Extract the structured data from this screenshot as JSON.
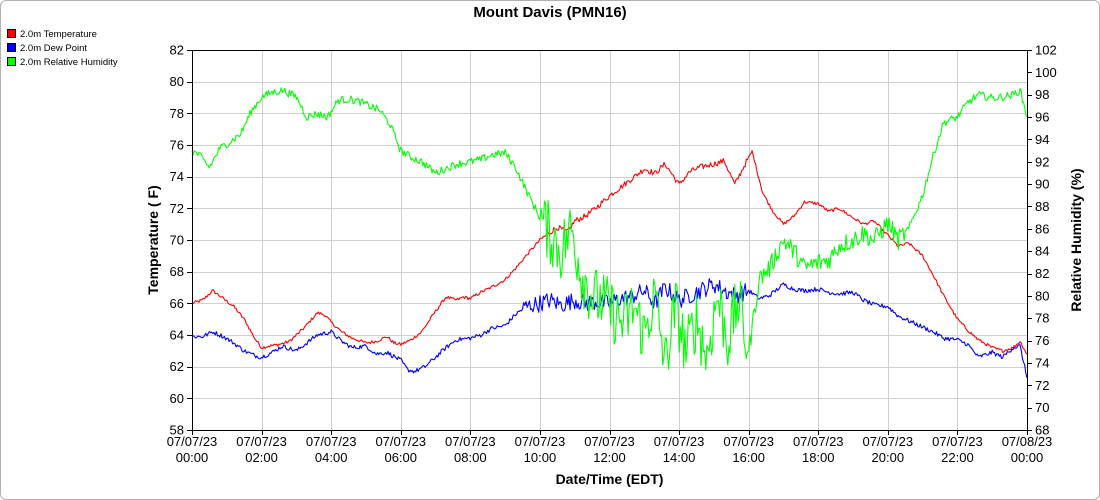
{
  "chart_data": {
    "type": "line",
    "title": "Mount Davis (PMN16)",
    "xlabel": "Date/Time (EDT)",
    "ylabel_left": "Temperature ( F)",
    "ylabel_right": "Relative Humidity (%)",
    "ylim_left": [
      58,
      82
    ],
    "ylim_right": [
      68,
      102
    ],
    "yticks_left": [
      58,
      60,
      62,
      64,
      66,
      68,
      70,
      72,
      74,
      76,
      78,
      80,
      82
    ],
    "yticks_right": [
      68,
      70,
      72,
      74,
      76,
      78,
      80,
      82,
      84,
      86,
      88,
      90,
      92,
      94,
      96,
      98,
      100,
      102
    ],
    "x_range_hours": [
      0,
      24
    ],
    "x_ticks": [
      {
        "h": 0,
        "date": "07/07/23",
        "time": "00:00"
      },
      {
        "h": 2,
        "date": "07/07/23",
        "time": "02:00"
      },
      {
        "h": 4,
        "date": "07/07/23",
        "time": "04:00"
      },
      {
        "h": 6,
        "date": "07/07/23",
        "time": "06:00"
      },
      {
        "h": 8,
        "date": "07/07/23",
        "time": "08:00"
      },
      {
        "h": 10,
        "date": "07/07/23",
        "time": "10:00"
      },
      {
        "h": 12,
        "date": "07/07/23",
        "time": "12:00"
      },
      {
        "h": 14,
        "date": "07/07/23",
        "time": "14:00"
      },
      {
        "h": 16,
        "date": "07/07/23",
        "time": "16:00"
      },
      {
        "h": 18,
        "date": "07/07/23",
        "time": "18:00"
      },
      {
        "h": 20,
        "date": "07/07/23",
        "time": "20:00"
      },
      {
        "h": 22,
        "date": "07/07/23",
        "time": "22:00"
      },
      {
        "h": 24,
        "date": "07/08/23",
        "time": "00:00"
      }
    ],
    "grid": true,
    "legend_position": "top-left",
    "series": [
      {
        "name": "2.0m Temperature",
        "axis": "left",
        "color": "#ff0000",
        "x": [
          0,
          0.3,
          0.6,
          0.9,
          1.2,
          1.5,
          1.8,
          2.0,
          2.2,
          2.5,
          2.8,
          3.2,
          3.6,
          3.8,
          4.0,
          4.3,
          4.6,
          5.0,
          5.3,
          5.6,
          5.8,
          6.0,
          6.3,
          6.6,
          7.0,
          7.3,
          7.6,
          7.8,
          8.0,
          8.3,
          8.6,
          9.0,
          9.3,
          9.6,
          10.0,
          10.3,
          10.5,
          10.8,
          11.0,
          11.3,
          11.6,
          12.0,
          12.3,
          12.6,
          13.0,
          13.3,
          13.6,
          14.0,
          14.3,
          14.6,
          15.0,
          15.3,
          15.6,
          15.9,
          16.1,
          16.4,
          16.7,
          17.0,
          17.3,
          17.6,
          18.0,
          18.3,
          18.6,
          19.0,
          19.3,
          19.6,
          20.0,
          20.3,
          20.6,
          21.0,
          21.3,
          21.6,
          22.0,
          22.3,
          22.6,
          23.0,
          23.3,
          23.6,
          23.8,
          24.0
        ],
        "y": [
          66.0,
          66.2,
          66.8,
          66.3,
          65.8,
          65.0,
          63.8,
          63.2,
          63.3,
          63.4,
          63.6,
          64.4,
          65.4,
          65.3,
          64.8,
          64.2,
          63.8,
          63.5,
          63.6,
          63.9,
          63.5,
          63.4,
          63.7,
          64.2,
          65.5,
          66.4,
          66.2,
          66.4,
          66.3,
          66.7,
          67.0,
          67.5,
          68.2,
          69.0,
          70.0,
          70.5,
          70.8,
          70.5,
          71.2,
          71.5,
          72.0,
          72.8,
          73.3,
          73.8,
          74.5,
          74.2,
          74.8,
          73.5,
          74.3,
          74.6,
          74.8,
          75.0,
          73.5,
          74.8,
          75.6,
          73.0,
          71.8,
          71.0,
          71.5,
          72.4,
          72.3,
          71.8,
          72.0,
          71.4,
          71.0,
          71.2,
          70.3,
          69.6,
          69.8,
          69.0,
          67.8,
          66.5,
          65.0,
          64.3,
          63.7,
          63.2,
          63.0,
          63.2,
          63.6,
          62.8
        ]
      },
      {
        "name": "2.0m Dew Point",
        "axis": "left",
        "color": "#0000ff",
        "x": [
          0,
          0.3,
          0.6,
          0.9,
          1.2,
          1.5,
          1.8,
          2.0,
          2.3,
          2.6,
          3.0,
          3.3,
          3.6,
          4.0,
          4.3,
          4.6,
          5.0,
          5.3,
          5.6,
          6.0,
          6.2,
          6.4,
          6.7,
          7.0,
          7.3,
          7.6,
          8.0,
          8.3,
          8.6,
          9.0,
          9.3,
          9.6,
          10.0,
          10.3,
          10.6,
          11.0,
          11.3,
          11.6,
          12.0,
          12.3,
          12.6,
          13.0,
          13.3,
          13.6,
          14.0,
          14.3,
          14.6,
          15.0,
          15.3,
          15.6,
          16.0,
          16.3,
          16.6,
          17.0,
          17.3,
          17.6,
          18.0,
          18.3,
          18.6,
          19.0,
          19.3,
          19.6,
          20.0,
          20.3,
          20.6,
          21.0,
          21.3,
          21.6,
          22.0,
          22.3,
          22.6,
          23.0,
          23.3,
          23.6,
          23.8,
          24.0
        ],
        "y": [
          63.9,
          63.9,
          64.2,
          63.9,
          63.5,
          63.0,
          62.7,
          62.6,
          62.9,
          63.3,
          63.0,
          63.5,
          64.0,
          64.2,
          63.6,
          63.2,
          63.3,
          62.8,
          62.9,
          62.4,
          61.8,
          61.7,
          62.0,
          62.6,
          63.2,
          63.7,
          63.8,
          64.0,
          64.4,
          64.6,
          65.3,
          65.8,
          66.0,
          66.2,
          65.9,
          66.2,
          66.0,
          66.1,
          66.0,
          66.3,
          66.4,
          66.8,
          66.0,
          67.0,
          66.2,
          66.5,
          66.8,
          67.2,
          66.8,
          66.5,
          66.8,
          66.3,
          66.5,
          67.2,
          66.9,
          66.8,
          66.9,
          66.7,
          66.6,
          66.7,
          66.2,
          65.9,
          65.8,
          65.2,
          64.9,
          64.5,
          64.2,
          63.8,
          63.7,
          63.4,
          62.6,
          62.9,
          62.6,
          63.2,
          63.3,
          61.3
        ]
      },
      {
        "name": "2.0m Relative Humidity",
        "axis": "right",
        "color": "#00ff00",
        "x": [
          0,
          0.2,
          0.5,
          0.8,
          1.1,
          1.4,
          1.7,
          2.0,
          2.3,
          2.6,
          3.0,
          3.3,
          3.6,
          3.9,
          4.2,
          4.5,
          4.8,
          5.1,
          5.4,
          5.7,
          6.0,
          6.3,
          6.6,
          7.0,
          7.3,
          7.6,
          8.0,
          8.3,
          8.6,
          9.0,
          9.3,
          9.6,
          10.0,
          10.3,
          10.6,
          10.9,
          11.2,
          11.5,
          11.8,
          12.1,
          12.4,
          12.7,
          13.0,
          13.3,
          13.6,
          13.9,
          14.2,
          14.5,
          14.8,
          15.1,
          15.4,
          15.7,
          16.0,
          16.3,
          16.6,
          17.0,
          17.3,
          17.6,
          18.0,
          18.3,
          18.6,
          19.0,
          19.3,
          19.6,
          20.0,
          20.3,
          20.6,
          21.0,
          21.3,
          21.6,
          22.0,
          22.3,
          22.6,
          23.0,
          23.3,
          23.6,
          23.8,
          24.0
        ],
        "y": [
          93.0,
          92.6,
          91.5,
          93.2,
          93.8,
          94.5,
          96.5,
          97.8,
          98.2,
          98.4,
          97.8,
          96.0,
          96.3,
          96.0,
          97.5,
          97.6,
          97.4,
          97.0,
          96.6,
          95.3,
          93.0,
          92.4,
          92.0,
          91.0,
          91.4,
          91.8,
          92.0,
          92.2,
          92.6,
          92.8,
          91.5,
          89.5,
          87.0,
          85.5,
          84.0,
          86.0,
          82.0,
          80.0,
          79.5,
          78.5,
          77.5,
          79.0,
          76.5,
          80.0,
          74.0,
          79.0,
          75.0,
          78.0,
          74.5,
          80.0,
          76.0,
          79.5,
          75.0,
          81.5,
          82.5,
          85.0,
          84.0,
          82.5,
          83.0,
          83.2,
          84.5,
          85.0,
          85.6,
          85.0,
          86.5,
          85.0,
          86.0,
          89.0,
          92.5,
          95.5,
          96.0,
          97.3,
          98.0,
          97.7,
          97.8,
          98.0,
          98.4,
          96.0
        ]
      }
    ]
  }
}
